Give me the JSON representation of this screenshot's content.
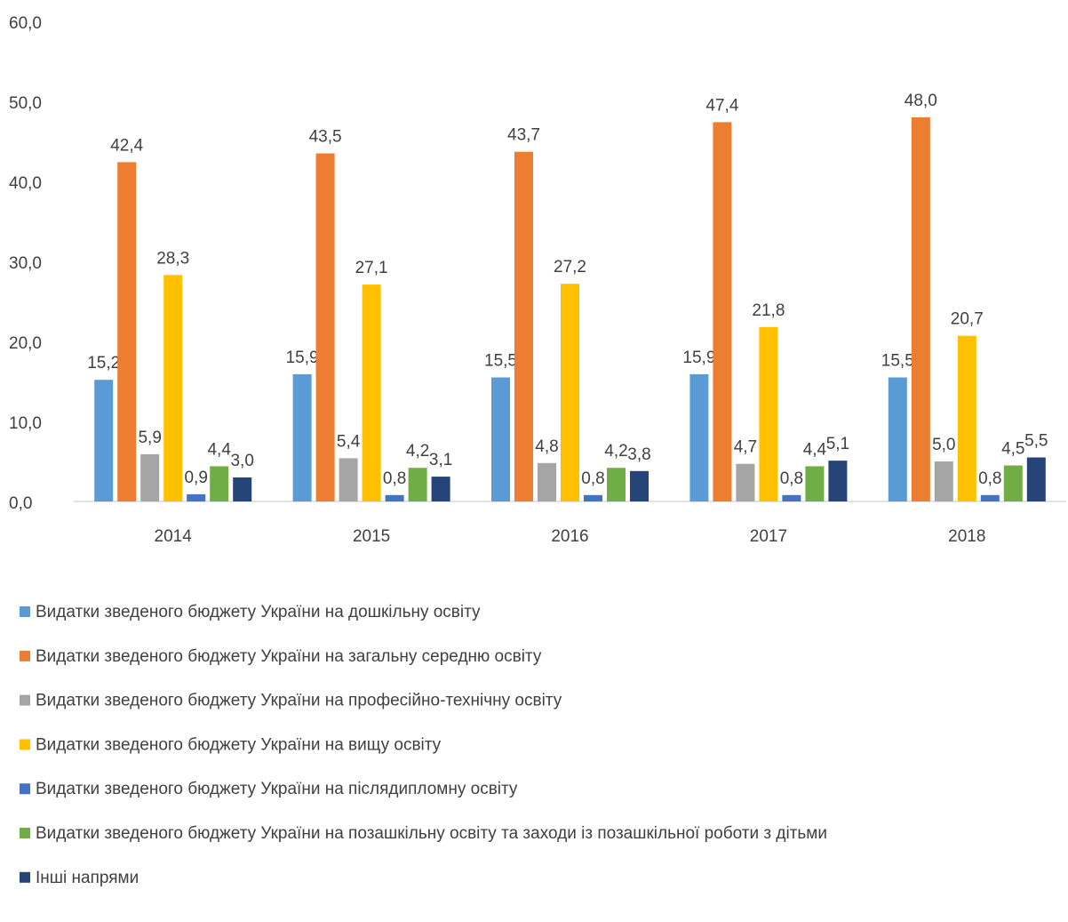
{
  "chart_data": {
    "type": "bar",
    "categories": [
      "2014",
      "2015",
      "2016",
      "2017",
      "2018"
    ],
    "ylim": [
      0,
      60
    ],
    "yticks": [
      {
        "value": 0,
        "label": "0,0"
      },
      {
        "value": 10,
        "label": "10,0"
      },
      {
        "value": 20,
        "label": "20,0"
      },
      {
        "value": 30,
        "label": "30,0"
      },
      {
        "value": 40,
        "label": "40,0"
      },
      {
        "value": 50,
        "label": "50,0"
      },
      {
        "value": 60,
        "label": "60,0"
      }
    ],
    "grid": false,
    "legend": "bottom",
    "series": [
      {
        "name": "Видатки зведеного бюджету України на дошкільну освіту",
        "color": "#5b9bd5",
        "values": [
          15.2,
          15.9,
          15.5,
          15.9,
          15.5
        ],
        "value_labels": [
          "15,2",
          "15,9",
          "15,5",
          "15,9",
          "15,5"
        ]
      },
      {
        "name": "Видатки зведеного бюджету України на загальну середню освіту",
        "color": "#ed7d31",
        "values": [
          42.4,
          43.5,
          43.7,
          47.4,
          48.0
        ],
        "value_labels": [
          "42,4",
          "43,5",
          "43,7",
          "47,4",
          "48,0"
        ]
      },
      {
        "name": "Видатки зведеного бюджету України на професійно-технічну освіту",
        "color": "#a5a5a5",
        "values": [
          5.9,
          5.4,
          4.8,
          4.7,
          5.0
        ],
        "value_labels": [
          "5,9",
          "5,4",
          "4,8",
          "4,7",
          "5,0"
        ]
      },
      {
        "name": "Видатки зведеного бюджету України на вищу освіту",
        "color": "#ffc000",
        "values": [
          28.3,
          27.1,
          27.2,
          21.8,
          20.7
        ],
        "value_labels": [
          "28,3",
          "27,1",
          "27,2",
          "21,8",
          "20,7"
        ]
      },
      {
        "name": "Видатки зведеного бюджету України на післядипломну освіту",
        "color": "#4472c4",
        "values": [
          0.9,
          0.8,
          0.8,
          0.8,
          0.8
        ],
        "value_labels": [
          "0,9",
          "0,8",
          "0,8",
          "0,8",
          "0,8"
        ]
      },
      {
        "name": "Видатки зведеного бюджету України на позашкільну освіту та заходи із позашкільної роботи з дітьми",
        "color": "#70ad47",
        "values": [
          4.4,
          4.2,
          4.2,
          4.4,
          4.5
        ],
        "value_labels": [
          "4,4",
          "4,2",
          "4,2",
          "4,4",
          "4,5"
        ]
      },
      {
        "name": "Інші напрями",
        "color": "#264478",
        "values": [
          3.0,
          3.1,
          3.8,
          5.1,
          5.5
        ],
        "value_labels": [
          "3,0",
          "3,1",
          "3,8",
          "5,1",
          "5,5"
        ]
      }
    ]
  }
}
